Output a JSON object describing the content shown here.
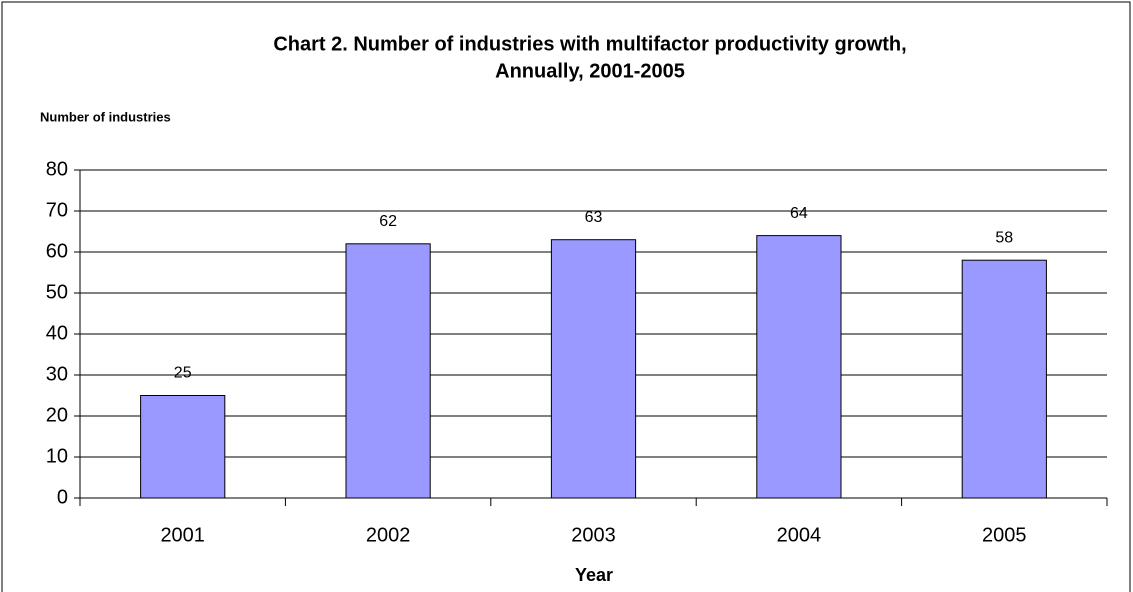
{
  "chart_data": {
    "type": "bar",
    "title": [
      "Chart 2. Number of industries with multifactor productivity growth,",
      "Annually, 2001-2005"
    ],
    "y_label": "Number of industries",
    "x_label": "Year",
    "categories": [
      "2001",
      "2002",
      "2003",
      "2004",
      "2005"
    ],
    "values": [
      25,
      62,
      63,
      64,
      58
    ],
    "color": "#9999ff",
    "ylim": [
      0,
      80
    ],
    "yticks": [
      0,
      10,
      20,
      30,
      40,
      50,
      60,
      70,
      80
    ],
    "grid": true
  }
}
